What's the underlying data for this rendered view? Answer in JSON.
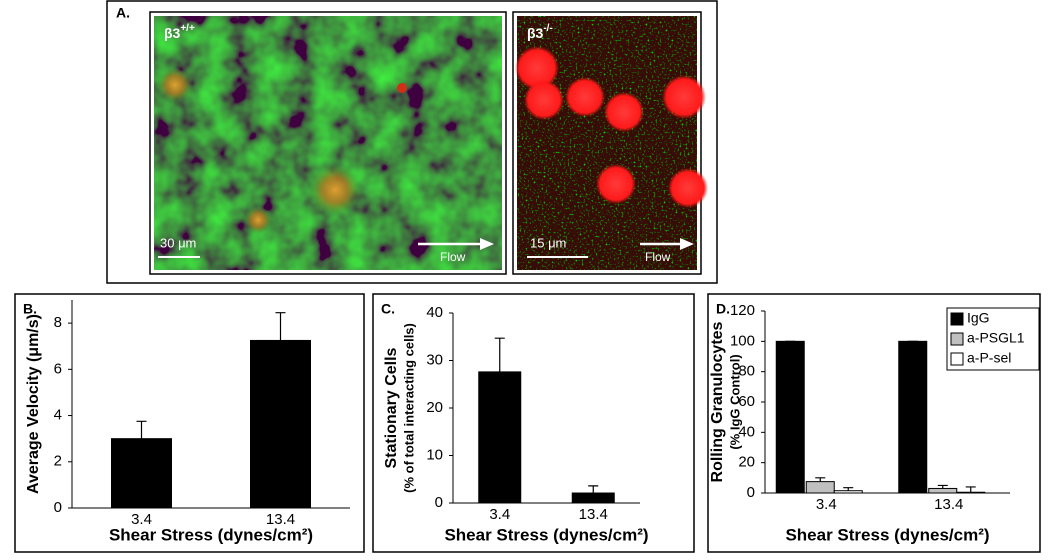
{
  "panel_a": {
    "label": "A.",
    "images": [
      {
        "genotype": "β3",
        "superscript": "+/+",
        "scale_bar": "30 μm",
        "flow": "Flow"
      },
      {
        "genotype": "β3",
        "superscript": "-/-",
        "scale_bar": "15 μm",
        "flow": "Flow"
      }
    ]
  },
  "chart_data": [
    {
      "type": "bar",
      "panel_label": "B.",
      "ylabel": [
        "Average Velocity (μm/s)"
      ],
      "xlabel": "Shear Stress (dynes/cm²)",
      "categories": [
        "3.4",
        "13.4"
      ],
      "values": [
        3.0,
        7.25
      ],
      "errors": [
        0.75,
        1.2
      ],
      "color": "#000000",
      "ylim": [
        0,
        9
      ],
      "yticks": [
        0,
        2,
        4,
        6,
        8
      ]
    },
    {
      "type": "bar",
      "panel_label": "C.",
      "ylabel": [
        "Stationary Cells",
        "(% of total interacting cells)"
      ],
      "xlabel": "Shear Stress (dynes/cm²)",
      "categories": [
        "3.4",
        "13.4"
      ],
      "values": [
        27.6,
        2.1
      ],
      "errors": [
        7.1,
        1.5
      ],
      "color": "#000000",
      "ylim": [
        0,
        40
      ],
      "yticks": [
        0,
        10,
        20,
        30,
        40
      ]
    },
    {
      "type": "bar",
      "panel_label": "D.",
      "ylabel": [
        "Rolling Granulocytes",
        "(% IgG Control)"
      ],
      "xlabel": "Shear Stress (dynes/cm²)",
      "categories": [
        "3.4",
        "13.4"
      ],
      "legend": "upper right",
      "series": [
        {
          "name": "IgG",
          "color": "#000000",
          "values": [
            100,
            100
          ],
          "errors": [
            0,
            0
          ]
        },
        {
          "name": "a-PSGL1",
          "color": "#c0c0c0",
          "values": [
            7.5,
            3
          ],
          "errors": [
            2.5,
            2
          ]
        },
        {
          "name": "a-P-sel",
          "color": "#ffffff",
          "values": [
            1.5,
            0.5
          ],
          "errors": [
            2,
            3.5
          ]
        }
      ],
      "ylim": [
        0,
        120
      ],
      "yticks": [
        0,
        20,
        40,
        60,
        80,
        100,
        120
      ]
    }
  ]
}
